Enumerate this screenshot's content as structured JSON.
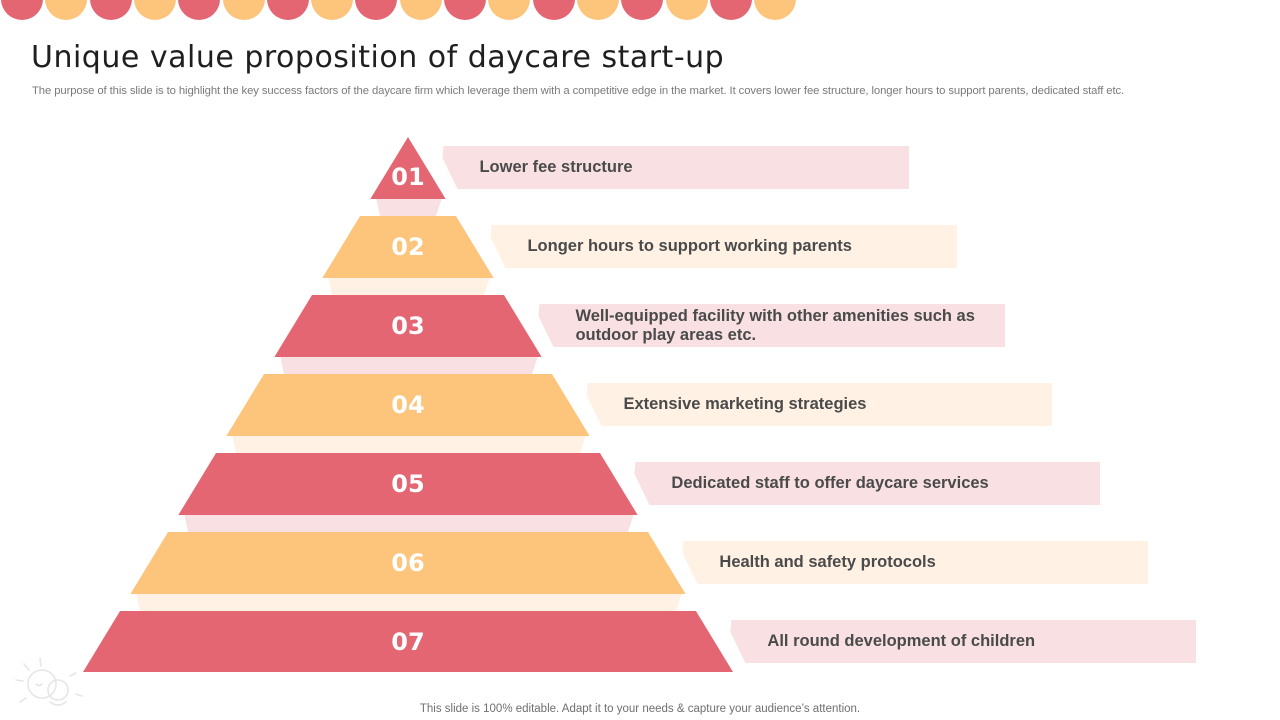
{
  "slide": {
    "title": "Unique value proposition of daycare start-up",
    "subtitle": "The purpose of this slide is to highlight the key success factors of the daycare firm which leverage them with a competitive edge in the market. It covers lower fee structure, longer hours to support parents, dedicated staff etc.",
    "footer": "This slide is 100% editable. Adapt it to your needs & capture your audience’s attention."
  },
  "colors": {
    "red": "#E46673",
    "orange": "#FCC57B",
    "red_light": "#F9E1E3",
    "orange_light": "#FFF2E4",
    "text": "#4A4A4A"
  },
  "pyramid": {
    "levels": [
      {
        "number": "01",
        "label": "Lower fee structure",
        "color": "red"
      },
      {
        "number": "02",
        "label": "Longer hours to support working parents",
        "color": "orange"
      },
      {
        "number": "03",
        "label": "Well-equipped facility with other amenities such as outdoor play areas etc.",
        "color": "red"
      },
      {
        "number": "04",
        "label": "Extensive marketing strategies",
        "color": "orange"
      },
      {
        "number": "05",
        "label": "Dedicated staff to offer daycare services",
        "color": "red"
      },
      {
        "number": "06",
        "label": "Health and safety protocols",
        "color": "orange"
      },
      {
        "number": "07",
        "label": "All round development of children",
        "color": "red"
      }
    ]
  },
  "decoration": {
    "top_dots_colors": [
      "#E46673",
      "#FCC57B"
    ],
    "watermark_icon": "baby-icon"
  }
}
